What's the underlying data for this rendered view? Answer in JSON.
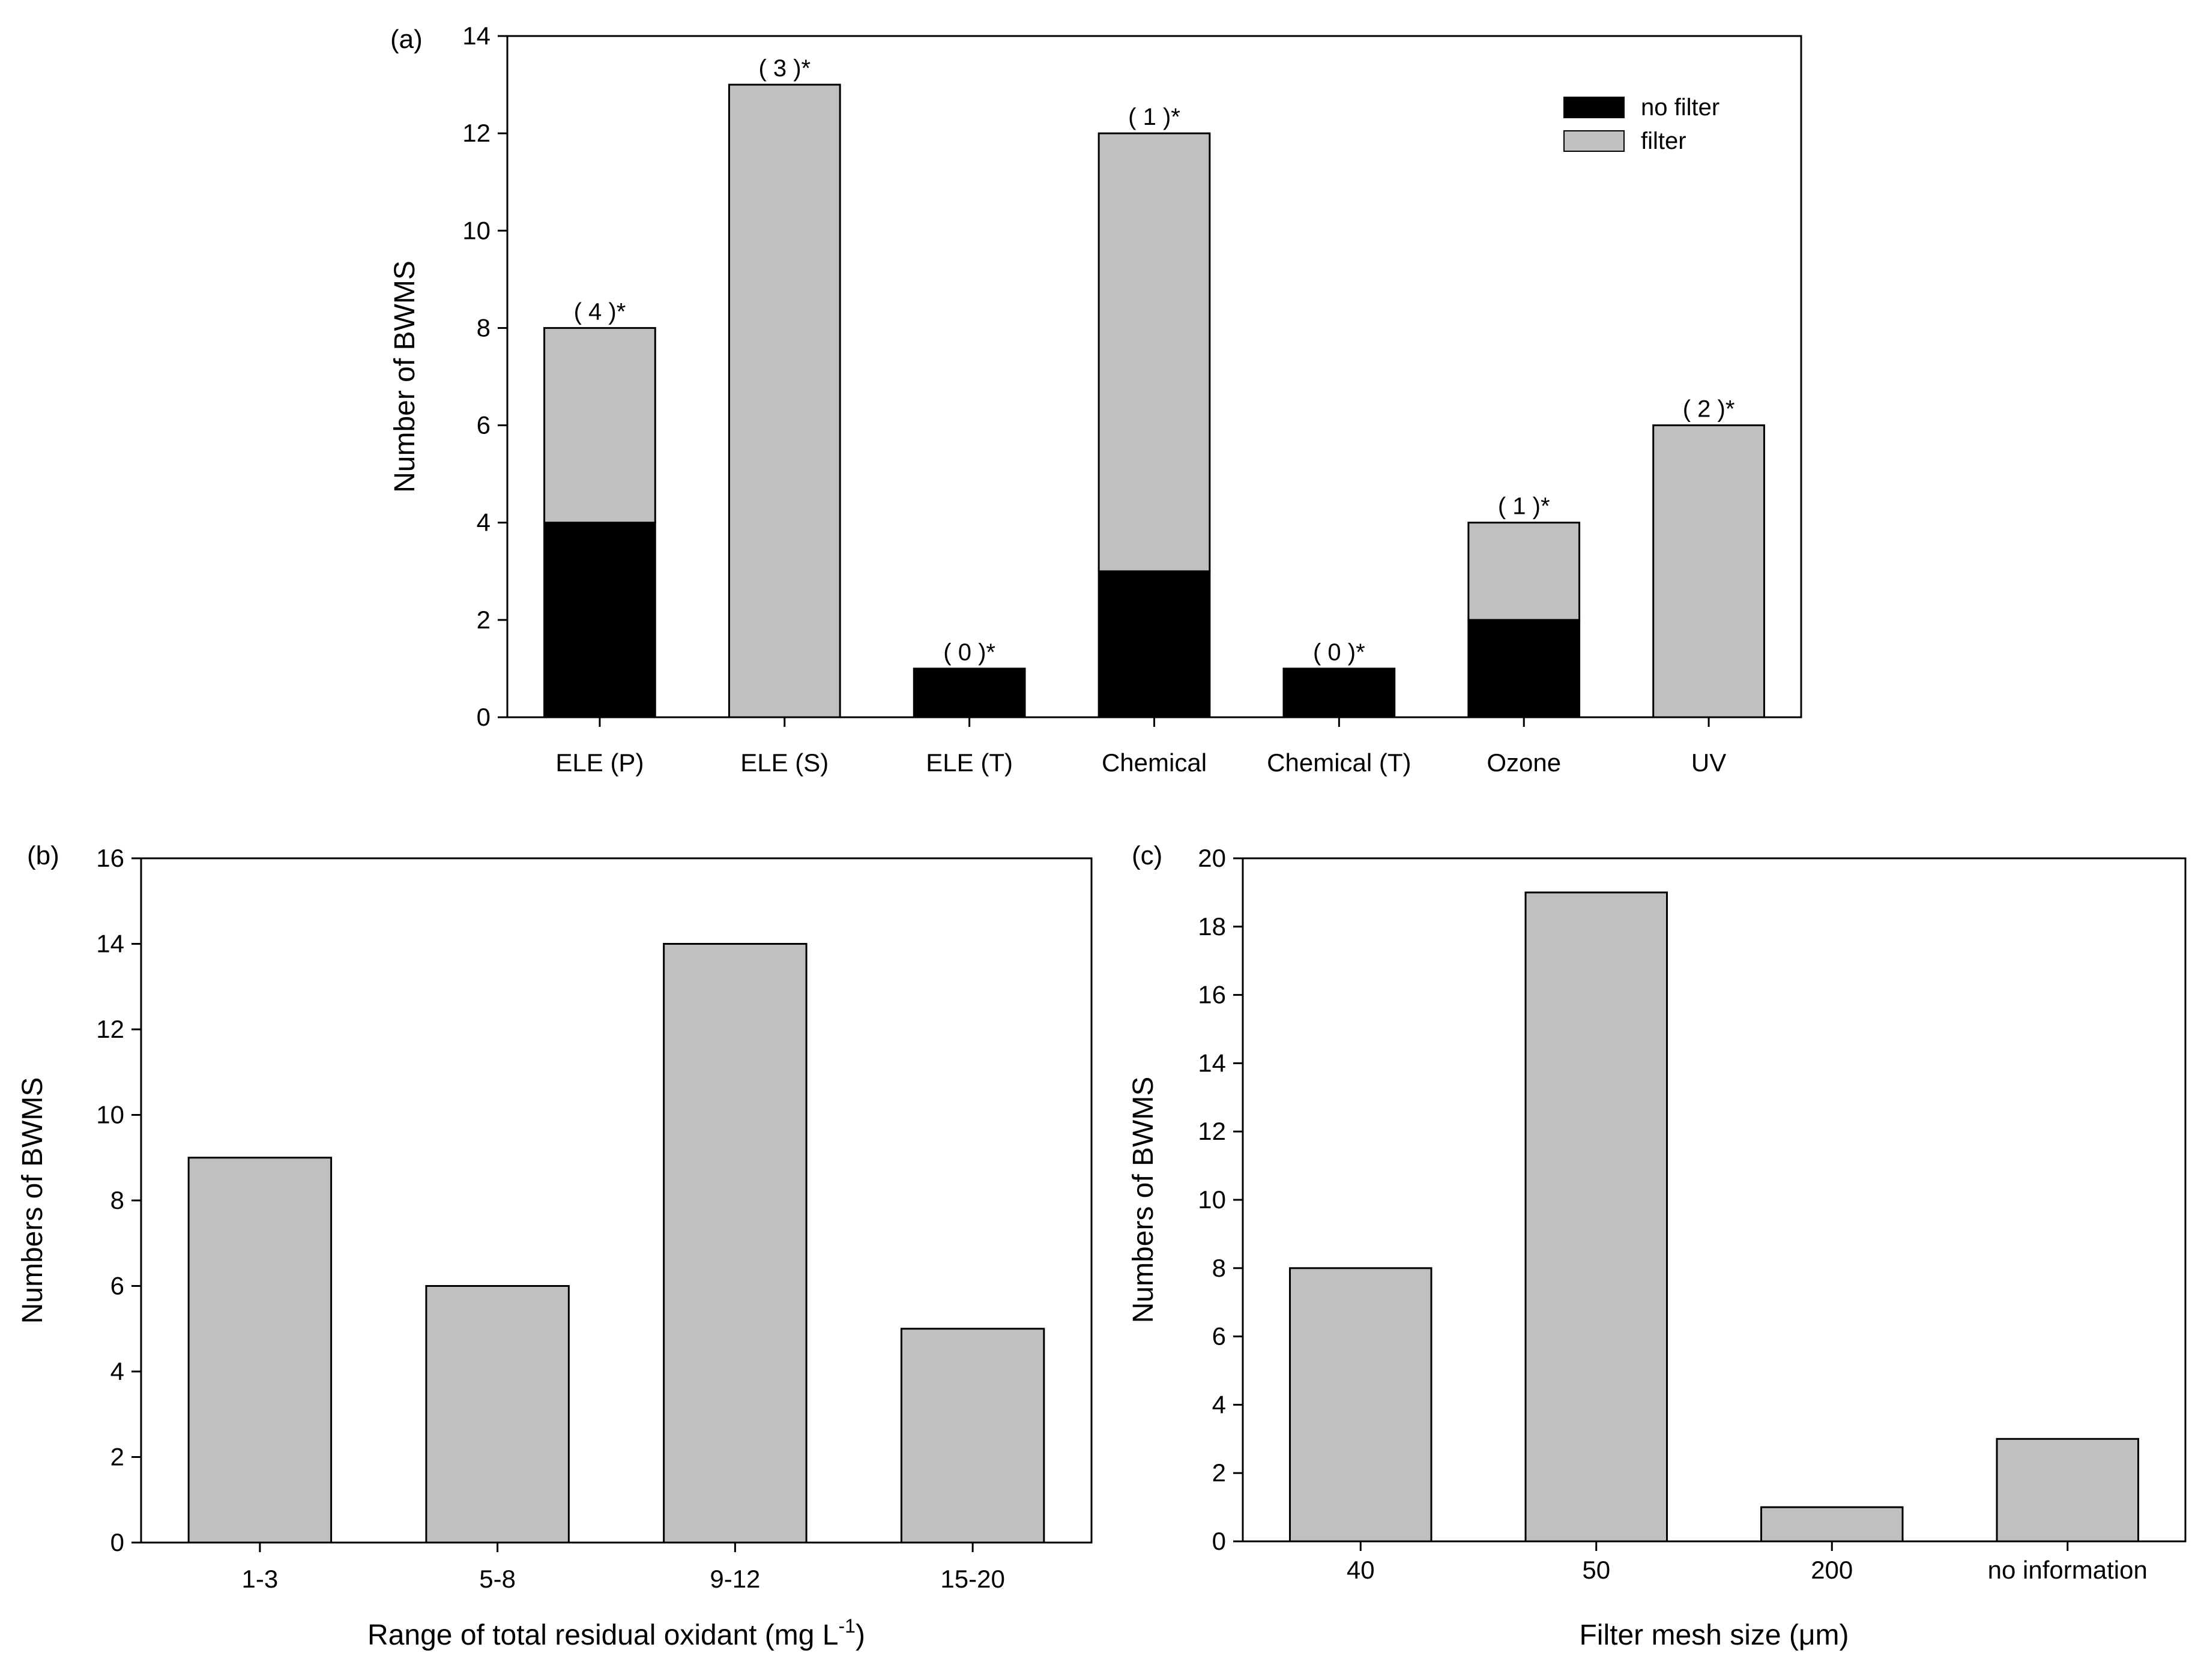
{
  "figure": {
    "colors": {
      "filter": "#c0c0c0",
      "no_filter": "#000000",
      "axis": "#000000",
      "background": "#ffffff"
    }
  },
  "chart_data": [
    {
      "id": "a",
      "type": "bar",
      "stacked": true,
      "panel_label": "(a)",
      "title": "",
      "xlabel": "",
      "ylabel": "Number of BWMS",
      "categories": [
        "ELE (P)",
        "ELE (S)",
        "ELE (T)",
        "Chemical",
        "Chemical (T)",
        "Ozone",
        "UV"
      ],
      "series": [
        {
          "name": "no filter",
          "color": "#000000",
          "values": [
            4,
            0,
            1,
            3,
            1,
            2,
            0
          ]
        },
        {
          "name": "filter",
          "color": "#c0c0c0",
          "values": [
            4,
            13,
            0,
            9,
            0,
            2,
            6
          ]
        }
      ],
      "annotations": [
        "( 4 )*",
        "( 3 )*",
        "( 0 )*",
        "( 1 )*",
        "( 0 )*",
        "( 1 )*",
        "( 2 )*"
      ],
      "ylim": [
        0,
        14
      ],
      "yticks": [
        0,
        2,
        4,
        6,
        8,
        10,
        12,
        14
      ],
      "legend": {
        "position": "top-right",
        "entries": [
          "no filter",
          "filter"
        ]
      },
      "grid": false
    },
    {
      "id": "b",
      "type": "bar",
      "panel_label": "(b)",
      "title": "",
      "xlabel": "Range of  total residual oxidant (mg L",
      "xlabel_superscript": "-1",
      "xlabel_suffix": ")",
      "ylabel": "Numbers of BWMS",
      "categories": [
        "1-3",
        "5-8",
        "9-12",
        "15-20"
      ],
      "values": [
        9,
        6,
        14,
        5
      ],
      "color": "#c0c0c0",
      "ylim": [
        0,
        16
      ],
      "yticks": [
        0,
        2,
        4,
        6,
        8,
        10,
        12,
        14,
        16
      ],
      "grid": false
    },
    {
      "id": "c",
      "type": "bar",
      "panel_label": "(c)",
      "title": "",
      "xlabel": "Filter mesh size (μm)",
      "ylabel": "Numbers of BWMS",
      "categories": [
        "40",
        "50",
        "200",
        "no information"
      ],
      "values": [
        8,
        19,
        1,
        3
      ],
      "color": "#c0c0c0",
      "ylim": [
        0,
        20
      ],
      "yticks": [
        0,
        2,
        4,
        6,
        8,
        10,
        12,
        14,
        16,
        18,
        20
      ],
      "grid": false
    }
  ]
}
